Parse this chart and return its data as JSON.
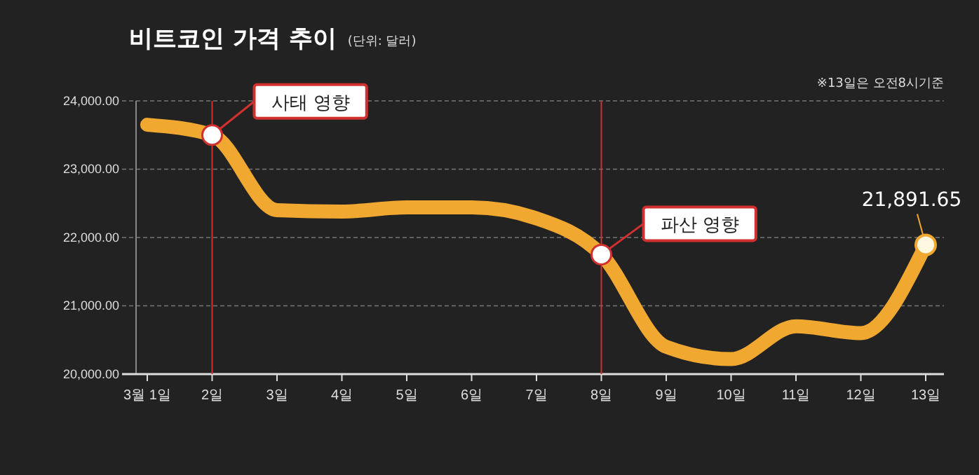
{
  "chart_data": {
    "type": "line",
    "title": "비트코인 가격 추이",
    "subtitle": "(단위: 달러)",
    "categories": [
      "3월 1일",
      "2일",
      "3일",
      "4일",
      "5일",
      "6일",
      "7일",
      "8일",
      "9일",
      "10일",
      "11일",
      "12일",
      "13일"
    ],
    "series": [
      {
        "color": "#f0a830",
        "values": [
          23650,
          23500,
          22400,
          22380,
          22440,
          22440,
          22280,
          21750,
          20400,
          20220,
          20700,
          20600,
          21891.65
        ],
        "value_labels": [
          null,
          null,
          null,
          null,
          null,
          null,
          null,
          null,
          null,
          null,
          null,
          null,
          "21,891.65"
        ]
      }
    ],
    "ylim": [
      20000,
      24000
    ],
    "yticks": [
      {
        "value": 20000,
        "label": "20,000.00"
      },
      {
        "value": 21000,
        "label": "21,000.00"
      },
      {
        "value": 22000,
        "label": "22,000.00"
      },
      {
        "value": 23000,
        "label": "23,000.00"
      },
      {
        "value": 24000,
        "label": "24,000.00"
      }
    ],
    "ref_lines": [
      {
        "axis": "x",
        "value": "2일",
        "color": "#d03030"
      },
      {
        "axis": "x",
        "value": "8일",
        "color": "#d03030"
      }
    ],
    "grid": "y",
    "marker": "none",
    "line_style": "solid",
    "annotations": [
      {
        "text": "사태 영향",
        "x": "2일",
        "y": 23500
      },
      {
        "text": "파산 영향",
        "x": "8일",
        "y": 21750
      },
      "※13일은 오전8시기준"
    ]
  }
}
